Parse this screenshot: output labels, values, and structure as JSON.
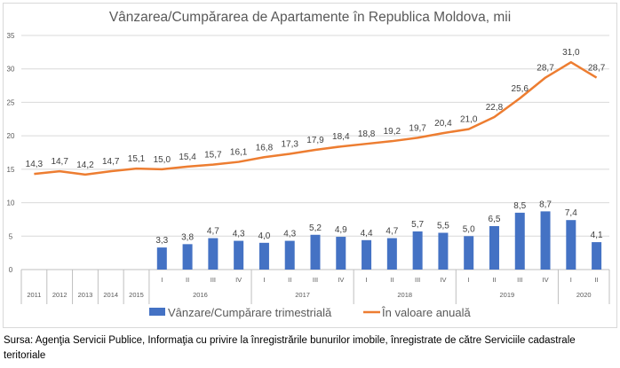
{
  "chart_data": {
    "type": "bar+line",
    "title": "Vânzarea/Cumpărarea de Apartamente în Republica Moldova, mii",
    "categories": [
      {
        "year": "2011",
        "quarter": ""
      },
      {
        "year": "2012",
        "quarter": ""
      },
      {
        "year": "2013",
        "quarter": ""
      },
      {
        "year": "2014",
        "quarter": ""
      },
      {
        "year": "2015",
        "quarter": ""
      },
      {
        "year": "2016",
        "quarter": "I"
      },
      {
        "year": "2016",
        "quarter": "II"
      },
      {
        "year": "2016",
        "quarter": "III"
      },
      {
        "year": "2016",
        "quarter": "IV"
      },
      {
        "year": "2017",
        "quarter": "I"
      },
      {
        "year": "2017",
        "quarter": "II"
      },
      {
        "year": "2017",
        "quarter": "III"
      },
      {
        "year": "2017",
        "quarter": "IV"
      },
      {
        "year": "2018",
        "quarter": "I"
      },
      {
        "year": "2018",
        "quarter": "II"
      },
      {
        "year": "2018",
        "quarter": "III"
      },
      {
        "year": "2018",
        "quarter": "IV"
      },
      {
        "year": "2019",
        "quarter": "I"
      },
      {
        "year": "2019",
        "quarter": "II"
      },
      {
        "year": "2019",
        "quarter": "III"
      },
      {
        "year": "2019",
        "quarter": "IV"
      },
      {
        "year": "2020",
        "quarter": "I"
      },
      {
        "year": "2020",
        "quarter": "II"
      }
    ],
    "series": [
      {
        "name": "Vânzare/Cumpărare trimestrială",
        "type": "bar",
        "color": "#4472C4",
        "values": [
          null,
          null,
          null,
          null,
          null,
          3.3,
          3.8,
          4.7,
          4.3,
          4.0,
          4.3,
          5.2,
          4.9,
          4.4,
          4.7,
          5.7,
          5.5,
          5.0,
          6.5,
          8.5,
          8.7,
          7.4,
          4.1
        ]
      },
      {
        "name": "În valoare anuală",
        "type": "line",
        "color": "#ED7D31",
        "values": [
          14.3,
          14.7,
          14.2,
          14.7,
          15.1,
          15.0,
          15.4,
          15.7,
          16.1,
          16.8,
          17.3,
          17.9,
          18.4,
          18.8,
          19.2,
          19.7,
          20.4,
          21.0,
          22.8,
          25.6,
          28.7,
          31.0,
          28.7
        ]
      }
    ],
    "ylim": [
      0,
      35
    ],
    "yticks": [
      0,
      5,
      10,
      15,
      20,
      25,
      30,
      35
    ],
    "grid": true,
    "legend": "bottom",
    "decimal_separator": ","
  },
  "source": "Sursa: Agenţia Servicii Publice, Informaţia cu privire la înregistrările bunurilor imobile, înregistrate de către Serviciile cadastrale teritoriale"
}
